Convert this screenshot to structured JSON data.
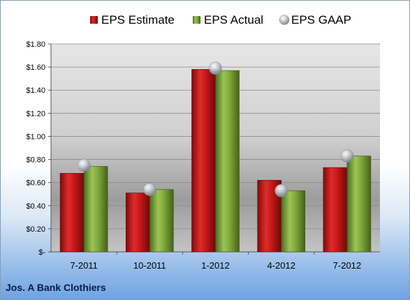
{
  "company": "Jos. A Bank Clothiers",
  "colors": {
    "estimate": "#c81b1b",
    "actual": "#7fa83a",
    "gaap": "#b8bec6"
  },
  "chart_data": {
    "type": "bar",
    "title": "",
    "xlabel": "",
    "ylabel": "",
    "categories": [
      "7-2011",
      "10-2011",
      "1-2012",
      "4-2012",
      "7-2012"
    ],
    "series": [
      {
        "name": "EPS Estimate",
        "kind": "bar",
        "values": [
          0.68,
          0.51,
          1.58,
          0.62,
          0.73
        ]
      },
      {
        "name": "EPS Actual",
        "kind": "bar",
        "values": [
          0.74,
          0.54,
          1.57,
          0.53,
          0.83
        ]
      },
      {
        "name": "EPS GAAP",
        "kind": "marker",
        "values": [
          0.75,
          0.54,
          1.59,
          0.53,
          0.83
        ]
      }
    ],
    "ylim": [
      0,
      1.8
    ],
    "yticks": [
      0,
      0.2,
      0.4,
      0.6,
      0.8,
      1.0,
      1.2,
      1.4,
      1.6,
      1.8
    ],
    "ytick_labels": [
      "$-",
      "$0.20",
      "$0.40",
      "$0.60",
      "$0.80",
      "$1.00",
      "$1.20",
      "$1.40",
      "$1.60",
      "$1.80"
    ],
    "grid": true,
    "legend_position": "top"
  }
}
